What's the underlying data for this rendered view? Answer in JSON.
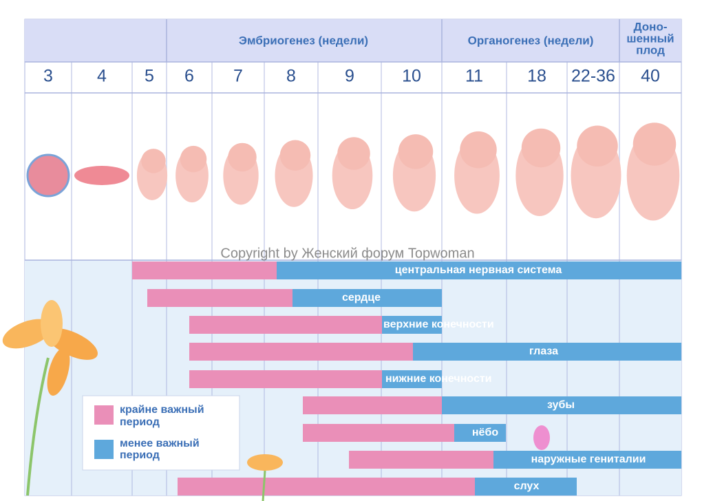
{
  "header": {
    "groups": [
      "Эмбриогенез (недели)",
      "Органогенез (недели)"
    ],
    "fullterm": [
      "Доно-",
      "шенный",
      "плод"
    ]
  },
  "weeks": [
    3,
    4,
    5,
    6,
    7,
    8,
    9,
    10,
    11,
    18,
    "22-36",
    40
  ],
  "watermark": "Copyright by Женский форум Topwoman",
  "periods": [
    {
      "label": "центральная нервная система"
    },
    {
      "label": "сердце"
    },
    {
      "label": "верхние конечности"
    },
    {
      "label": "глаза"
    },
    {
      "label": "нижние конечности"
    },
    {
      "label": "зубы"
    },
    {
      "label": "нёбо"
    },
    {
      "label": "наружные гениталии"
    },
    {
      "label": "слух"
    }
  ],
  "legend": [
    {
      "label": [
        "крайне важный",
        "период"
      ]
    },
    {
      "label": [
        "менее важный",
        "период"
      ]
    }
  ]
}
